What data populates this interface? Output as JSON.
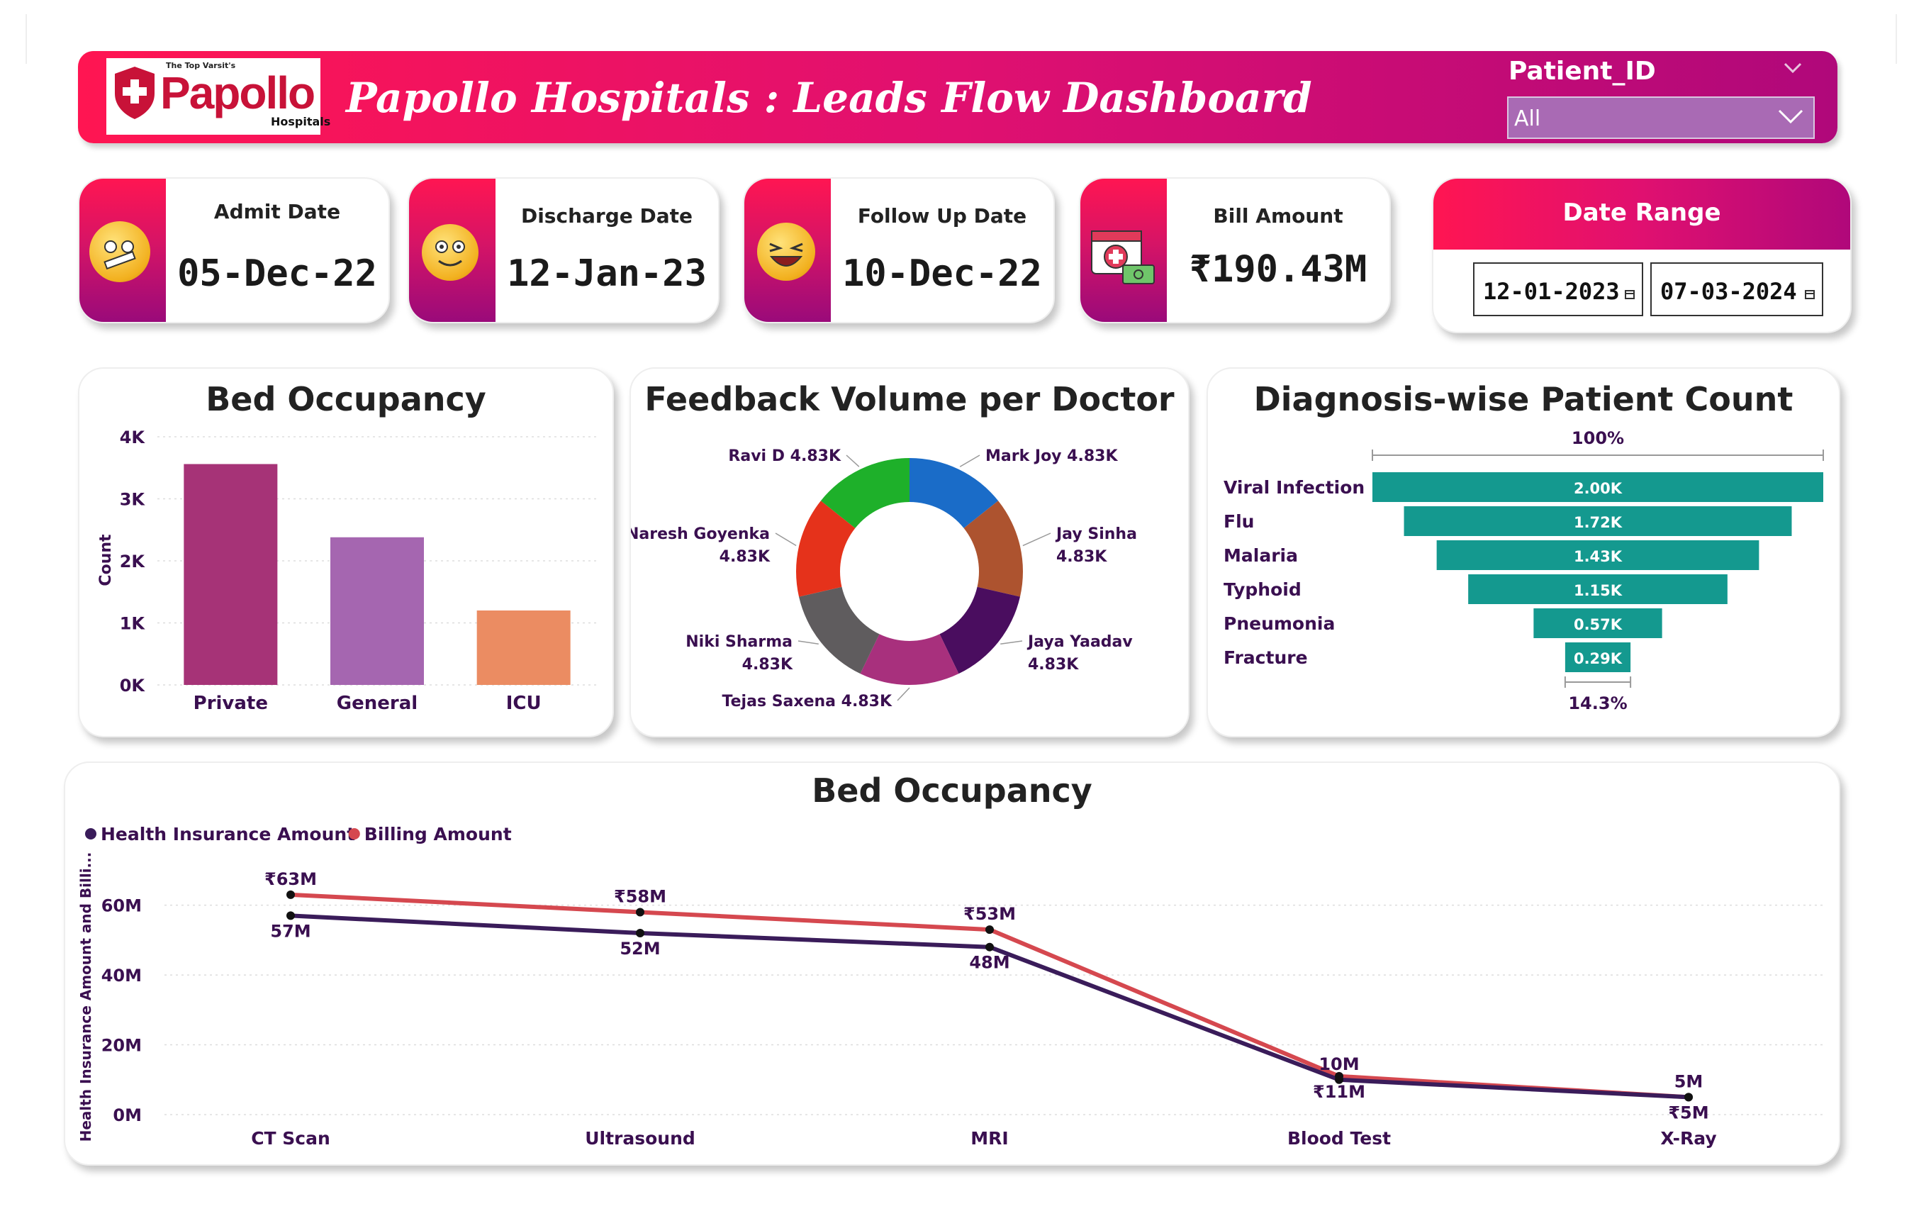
{
  "header": {
    "logo_tagline": "The Top Varsit's",
    "logo_name": "Papollo",
    "logo_sub": "Hospitals",
    "title": "Papollo Hospitals : Leads Flow Dashboard",
    "filter_label": "Patient_ID",
    "filter_value": "All"
  },
  "kpis": [
    {
      "label": "Admit Date",
      "value": "05-Dec-22",
      "icon": "sick-face-emoji-icon"
    },
    {
      "label": "Discharge Date",
      "value": "12-Jan-23",
      "icon": "happy-face-emoji-icon"
    },
    {
      "label": "Follow Up Date",
      "value": "10-Dec-22",
      "icon": "laughing-face-emoji-icon"
    },
    {
      "label": "Bill Amount",
      "value": "₹190.43M",
      "icon": "medical-bill-icon"
    }
  ],
  "date_range": {
    "title": "Date Range",
    "start": "12-01-2023",
    "end": "07-03-2024"
  },
  "colors": {
    "accent_pink": "#ff1552",
    "accent_purple": "#9a0a7a",
    "funnel_teal": "#14998f",
    "line_insurance": "#3a1c5a",
    "line_billing": "#d5484f"
  },
  "bed_chart": {
    "title": "Bed Occupancy",
    "chart_data": {
      "type": "bar",
      "categories": [
        "Private",
        "General",
        "ICU"
      ],
      "values": [
        3560,
        2380,
        1200
      ],
      "colors": [
        "#a63377",
        "#a566b0",
        "#eb8c62"
      ],
      "ylabel": "Count",
      "yticks": [
        "0K",
        "1K",
        "2K",
        "3K",
        "4K"
      ],
      "ylim": [
        0,
        4000
      ],
      "grid": true
    }
  },
  "feedback_chart": {
    "title": "Feedback Volume per Doctor",
    "chart_data": {
      "type": "pie",
      "donut": true,
      "slices": [
        {
          "label": "Mark Joy",
          "value": "4.83K",
          "color": "#1a6cc8"
        },
        {
          "label": "Jay Sinha",
          "value": "4.83K",
          "color": "#ad532f"
        },
        {
          "label": "Jaya Yaadav",
          "value": "4.83K",
          "color": "#4a0d5f"
        },
        {
          "label": "Tejas Saxena",
          "value": "4.83K",
          "color": "#a8307d"
        },
        {
          "label": "Niki Sharma",
          "value": "4.83K",
          "color": "#5f5c5e"
        },
        {
          "label": "Naresh Goyenka",
          "value": "4.83K",
          "color": "#e5321b"
        },
        {
          "label": "Ravi D",
          "value": "4.83K",
          "color": "#1eb02a"
        }
      ]
    }
  },
  "diagnosis_chart": {
    "title": "Diagnosis-wise Patient Count",
    "chart_data": {
      "type": "bar",
      "orientation": "funnel",
      "top_percent": "100%",
      "bottom_percent": "14.3%",
      "categories": [
        "Viral Infection",
        "Flu",
        "Malaria",
        "Typhoid",
        "Pneumonia",
        "Fracture"
      ],
      "values": [
        2000,
        1720,
        1430,
        1150,
        570,
        290
      ],
      "value_labels": [
        "2.00K",
        "1.72K",
        "1.43K",
        "1.15K",
        "0.57K",
        "0.29K"
      ]
    }
  },
  "line_chart": {
    "title": "Bed Occupancy",
    "chart_data": {
      "type": "line",
      "categories": [
        "CT Scan",
        "Ultrasound",
        "MRI",
        "Blood Test",
        "X-Ray"
      ],
      "ylabel": "Health Insurance Amount and Billi...",
      "yticks": [
        "0M",
        "20M",
        "40M",
        "60M"
      ],
      "ylim": [
        0,
        65
      ],
      "grid": true,
      "legend_position": "top-left",
      "series": [
        {
          "name": "Health Insurance Amount",
          "values": [
            57,
            52,
            48,
            10,
            5
          ],
          "labels": [
            "57M",
            "52M",
            "48M",
            "10M",
            "5M"
          ],
          "color": "#3a1c5a"
        },
        {
          "name": "Billing Amount",
          "values": [
            63,
            58,
            53,
            11,
            5
          ],
          "labels": [
            "₹63M",
            "₹58M",
            "₹53M",
            "₹11M",
            "₹5M"
          ],
          "color": "#d5484f"
        }
      ]
    }
  }
}
